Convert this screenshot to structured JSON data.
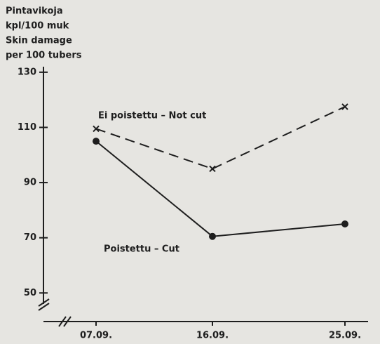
{
  "chart_data": {
    "type": "line",
    "title_lines": [
      "Pintavikoja",
      "kpl/100 muk",
      "Skin damage",
      "per 100 tubers"
    ],
    "categories": [
      "07.09.",
      "16.09.",
      "25.09."
    ],
    "series": [
      {
        "name": "Ei poistettu – Not cut",
        "color": "#1e1e1e",
        "dash": true,
        "marker": "x",
        "values": [
          109.5,
          95,
          117.5
        ]
      },
      {
        "name": "Poistettu – Cut",
        "color": "#1e1e1e",
        "dash": false,
        "marker": "circle",
        "values": [
          105,
          70.5,
          75
        ]
      }
    ],
    "ylim": [
      46,
      132
    ],
    "yticks": [
      50,
      70,
      90,
      110,
      130
    ],
    "grid": false
  }
}
